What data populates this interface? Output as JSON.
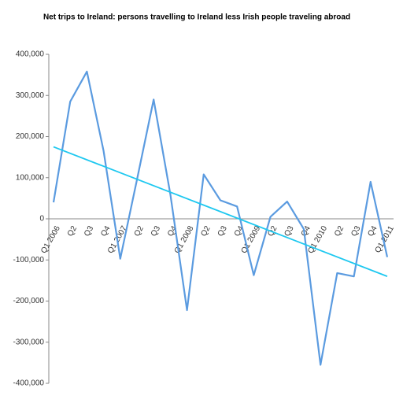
{
  "chart_data": {
    "type": "line",
    "title": "Net trips to Ireland: persons travelling to Ireland less Irish people traveling abroad",
    "categories": [
      "Q1 2006",
      "Q2",
      "Q3",
      "Q4",
      "Q1 2007",
      "Q2",
      "Q3",
      "Q4",
      "Q1 2008",
      "Q2",
      "Q3",
      "Q4",
      "Q1 2009",
      "Q2",
      "Q3",
      "Q4",
      "Q1 2010",
      "Q2",
      "Q3",
      "Q4",
      "Q1 2011"
    ],
    "series": [
      {
        "color": "#5b9be0",
        "values": [
          40000,
          285000,
          358000,
          165000,
          -97000,
          95000,
          290000,
          60000,
          -222000,
          108000,
          45000,
          30000,
          -137000,
          5000,
          42000,
          -25000,
          -355000,
          -132000,
          -140000,
          90000,
          -93000
        ]
      }
    ],
    "trend": {
      "color": "#1ec8f0",
      "values": [
        175000,
        -140000
      ]
    },
    "ylim": [
      -400000,
      400000
    ],
    "yticks": [
      {
        "value": -400000,
        "label": "-400,000"
      },
      {
        "value": -300000,
        "label": "-300,000"
      },
      {
        "value": -200000,
        "label": "-200,000"
      },
      {
        "value": -100000,
        "label": "-100,000"
      },
      0,
      {
        "value": 100000,
        "label": "100,000"
      },
      {
        "value": 200000,
        "label": "200,000"
      },
      {
        "value": 300000,
        "label": "300,000"
      },
      {
        "value": 400000,
        "label": "400,000"
      }
    ]
  }
}
